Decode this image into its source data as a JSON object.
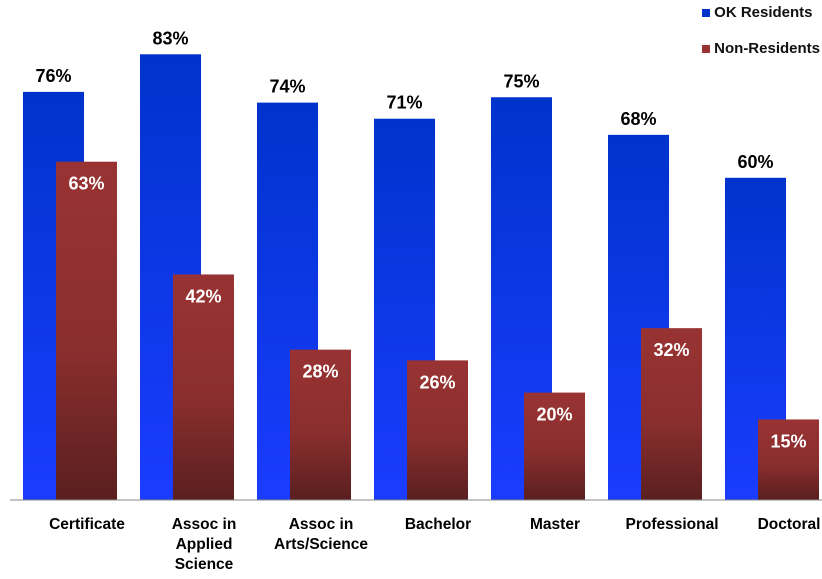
{
  "chart_data": {
    "type": "bar",
    "title": "",
    "xlabel": "",
    "ylabel": "",
    "ylim": [
      0,
      100
    ],
    "grid": false,
    "legend_position": "top-right",
    "categories": [
      "Certificate",
      "Assoc in Applied Science",
      "Assoc in Arts/Science",
      "Bachelor",
      "Master",
      "Professional",
      "Doctoral"
    ],
    "category_label_lines": [
      [
        "Certificate"
      ],
      [
        "Assoc in",
        "Applied",
        "Science"
      ],
      [
        "Assoc in",
        "Arts/Science"
      ],
      [
        "Bachelor"
      ],
      [
        "Master"
      ],
      [
        "Professional"
      ],
      [
        "Doctoral"
      ]
    ],
    "series": [
      {
        "name": "OK Residents",
        "values": [
          76,
          83,
          74,
          71,
          75,
          68,
          60
        ],
        "labels": [
          "76%",
          "83%",
          "74%",
          "71%",
          "75%",
          "68%",
          "60%"
        ],
        "color": "#0033cc",
        "color_light": "#1a3cff"
      },
      {
        "name": "Non-Residents",
        "values": [
          63,
          42,
          28,
          26,
          20,
          32,
          15
        ],
        "labels": [
          "63%",
          "42%",
          "28%",
          "26%",
          "20%",
          "32%",
          "15%"
        ],
        "color": "#993333",
        "color_dark": "#5a1f1f"
      }
    ]
  }
}
